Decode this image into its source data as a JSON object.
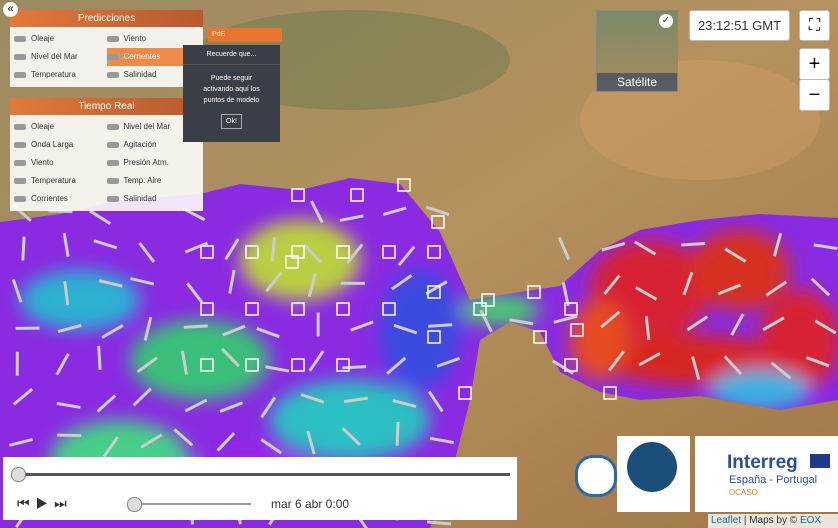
{
  "controls": {
    "clock": "23:12:51 GMT",
    "layer_switch": "Satélite",
    "zoom_in": "+",
    "zoom_out": "−"
  },
  "predicciones": {
    "title": "Predicciones",
    "items": [
      "Oleaje",
      "Viento",
      "Nivel del Mar",
      "Corrientes",
      "Temperatura",
      "Salinidad"
    ]
  },
  "popup": {
    "dropdown": "PdE",
    "title": "Recuerde que...",
    "text": "Puede seguir activando aquí los puntos de modelo",
    "button": "Ok!"
  },
  "tiempo_real": {
    "title": "Tiempo Real",
    "items": [
      "Oleaje",
      "Nivel del Mar",
      "Onda Larga",
      "Agitación",
      "Viento",
      "Presión Atm.",
      "Temperatura",
      "Temp. Aire",
      "Corrientes",
      "Salinidad"
    ]
  },
  "timeline": {
    "date": "mar 6 abr 0:00"
  },
  "logos": {
    "interreg": "Interreg",
    "region": "España - Portugal",
    "project": "OCASO"
  },
  "attribution": {
    "leaflet": "Leaflet",
    "separator": "|",
    "maps_by": "Maps by ©",
    "provider": "EOX"
  }
}
